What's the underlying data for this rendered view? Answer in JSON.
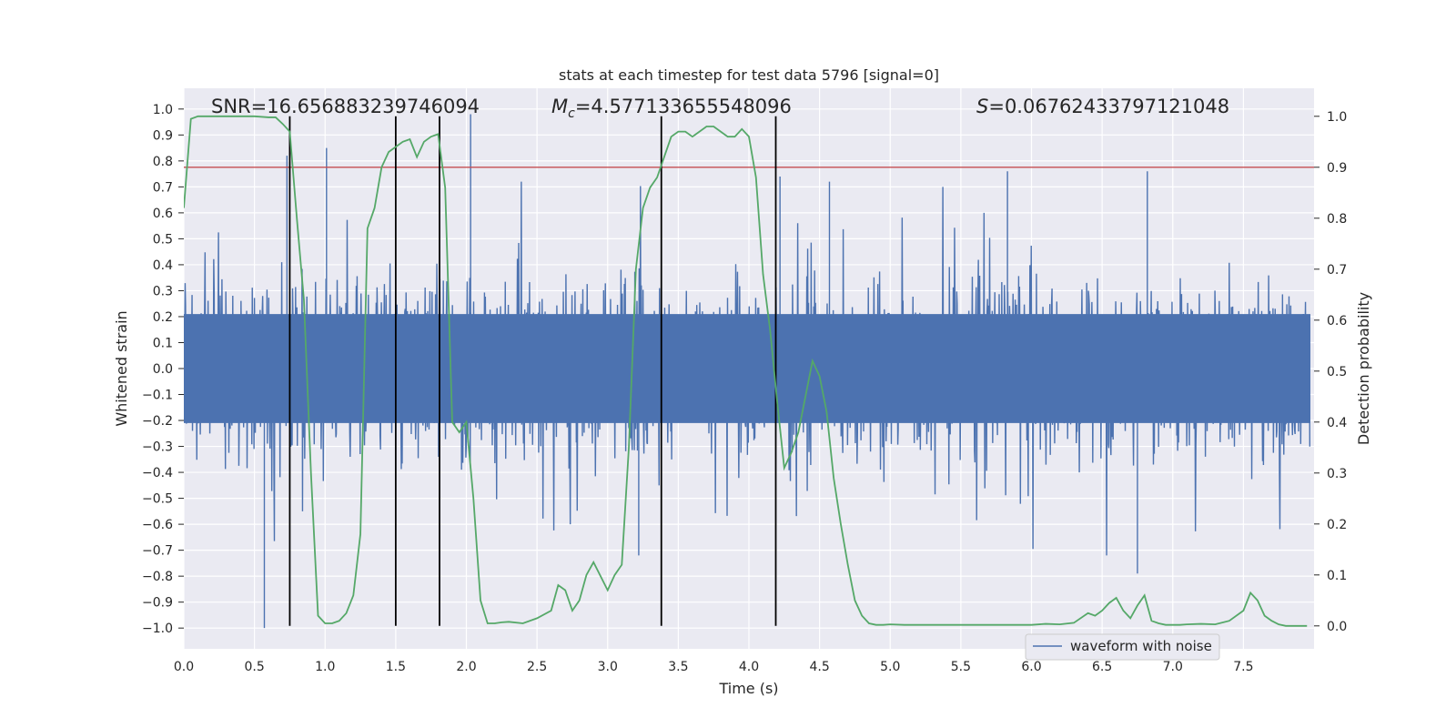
{
  "chart_data": {
    "type": "line",
    "title": "stats at each timestep for test data 5796 [signal=0]",
    "xlabel": "Time (s)",
    "ylabel": "Whitened strain",
    "y2label": "Detection probability",
    "xlim": [
      0.0,
      8.0
    ],
    "ylim": [
      -1.08,
      1.08
    ],
    "y2lim": [
      -0.045,
      1.055
    ],
    "x_ticks": [
      "0.0",
      "0.5",
      "1.0",
      "1.5",
      "2.0",
      "2.5",
      "3.0",
      "3.5",
      "4.0",
      "4.5",
      "5.0",
      "5.5",
      "6.0",
      "6.5",
      "7.0",
      "7.5"
    ],
    "y_ticks": [
      "1.0",
      "0.9",
      "0.8",
      "0.7",
      "0.6",
      "0.5",
      "0.4",
      "0.3",
      "0.2",
      "0.1",
      "0.0",
      "-0.1",
      "-0.2",
      "-0.3",
      "-0.4",
      "-0.5",
      "-0.6",
      "-0.7",
      "-0.8",
      "-0.9",
      "-1.0"
    ],
    "y2_ticks": [
      "1.0",
      "0.9",
      "0.8",
      "0.7",
      "0.6",
      "0.5",
      "0.4",
      "0.3",
      "0.2",
      "0.1",
      "0.0"
    ],
    "annotations": {
      "snr": "SNR=16.656883239746094",
      "mc_symbol": "M",
      "mc_sub": "c",
      "mc_value": "=4.577133655548096",
      "s_symbol": "S",
      "s_value": "=0.06762433797121048"
    },
    "legend": {
      "entries": [
        "waveform with noise"
      ],
      "placement": "lower-right"
    },
    "grid": true,
    "series": [
      {
        "name": "waveform with noise",
        "color": "#4c72b0",
        "axis": "left",
        "kind": "noise",
        "core_amplitude": 0.21,
        "typical_peak": 0.5,
        "spikes": [
          {
            "x": 0.57,
            "y": -1.0
          },
          {
            "x": 0.73,
            "y": 0.82
          },
          {
            "x": 1.01,
            "y": 0.85
          },
          {
            "x": 2.03,
            "y": 0.98
          },
          {
            "x": 4.22,
            "y": 0.74
          },
          {
            "x": 4.57,
            "y": 0.72
          },
          {
            "x": 6.75,
            "y": -0.79
          },
          {
            "x": 3.22,
            "y": -0.72
          },
          {
            "x": 5.83,
            "y": 0.76
          },
          {
            "x": 6.82,
            "y": 0.76
          }
        ]
      },
      {
        "name": "",
        "color": "#55a868",
        "axis": "right",
        "x": [
          0.0,
          0.05,
          0.1,
          0.2,
          0.3,
          0.4,
          0.5,
          0.6,
          0.65,
          0.7,
          0.75,
          0.8,
          0.85,
          0.9,
          0.95,
          1.0,
          1.05,
          1.1,
          1.15,
          1.2,
          1.25,
          1.3,
          1.35,
          1.4,
          1.45,
          1.5,
          1.55,
          1.6,
          1.65,
          1.7,
          1.75,
          1.8,
          1.85,
          1.9,
          1.95,
          2.0,
          2.05,
          2.1,
          2.15,
          2.2,
          2.25,
          2.3,
          2.4,
          2.5,
          2.6,
          2.65,
          2.7,
          2.75,
          2.8,
          2.85,
          2.9,
          3.0,
          3.05,
          3.1,
          3.15,
          3.2,
          3.25,
          3.3,
          3.35,
          3.4,
          3.45,
          3.5,
          3.55,
          3.6,
          3.65,
          3.7,
          3.75,
          3.8,
          3.85,
          3.9,
          3.95,
          4.0,
          4.05,
          4.1,
          4.15,
          4.2,
          4.25,
          4.3,
          4.35,
          4.4,
          4.45,
          4.5,
          4.55,
          4.6,
          4.65,
          4.7,
          4.75,
          4.8,
          4.85,
          4.9,
          4.95,
          5.0,
          5.1,
          5.2,
          5.3,
          5.5,
          5.7,
          5.9,
          6.0,
          6.1,
          6.2,
          6.3,
          6.4,
          6.45,
          6.5,
          6.55,
          6.6,
          6.65,
          6.7,
          6.75,
          6.8,
          6.85,
          6.9,
          6.95,
          7.0,
          7.05,
          7.1,
          7.2,
          7.3,
          7.4,
          7.5,
          7.55,
          7.6,
          7.65,
          7.7,
          7.75,
          7.8,
          7.85,
          7.9,
          7.95
        ],
        "y": [
          0.82,
          0.995,
          1.0,
          1.0,
          1.0,
          1.0,
          1.0,
          0.998,
          0.998,
          0.985,
          0.97,
          0.8,
          0.64,
          0.3,
          0.02,
          0.005,
          0.005,
          0.01,
          0.025,
          0.06,
          0.18,
          0.78,
          0.82,
          0.9,
          0.93,
          0.94,
          0.95,
          0.955,
          0.92,
          0.95,
          0.96,
          0.965,
          0.86,
          0.4,
          0.38,
          0.4,
          0.25,
          0.05,
          0.005,
          0.005,
          0.007,
          0.008,
          0.005,
          0.015,
          0.03,
          0.08,
          0.07,
          0.03,
          0.05,
          0.1,
          0.125,
          0.07,
          0.1,
          0.12,
          0.35,
          0.7,
          0.82,
          0.86,
          0.88,
          0.92,
          0.96,
          0.97,
          0.97,
          0.96,
          0.97,
          0.98,
          0.98,
          0.97,
          0.96,
          0.96,
          0.975,
          0.96,
          0.88,
          0.69,
          0.58,
          0.44,
          0.31,
          0.34,
          0.38,
          0.45,
          0.52,
          0.49,
          0.42,
          0.29,
          0.2,
          0.12,
          0.05,
          0.02,
          0.005,
          0.002,
          0.002,
          0.003,
          0.002,
          0.002,
          0.002,
          0.002,
          0.002,
          0.002,
          0.002,
          0.004,
          0.003,
          0.006,
          0.025,
          0.02,
          0.03,
          0.045,
          0.055,
          0.03,
          0.015,
          0.04,
          0.06,
          0.01,
          0.005,
          0.002,
          0.002,
          0.002,
          0.003,
          0.004,
          0.003,
          0.01,
          0.03,
          0.065,
          0.05,
          0.02,
          0.01,
          0.003,
          0.0,
          0.0,
          0.0,
          0.0
        ],
        "x_note": "",
        "points_xy": []
      },
      {
        "name": "",
        "color": "#c44e52",
        "axis": "right",
        "kind": "hline",
        "y": 0.9
      }
    ],
    "vlines": {
      "color": "#000000",
      "x": [
        0.75,
        1.5,
        1.81,
        3.38,
        4.19
      ],
      "y2_from": 0.0,
      "y2_to": 1.0
    }
  }
}
